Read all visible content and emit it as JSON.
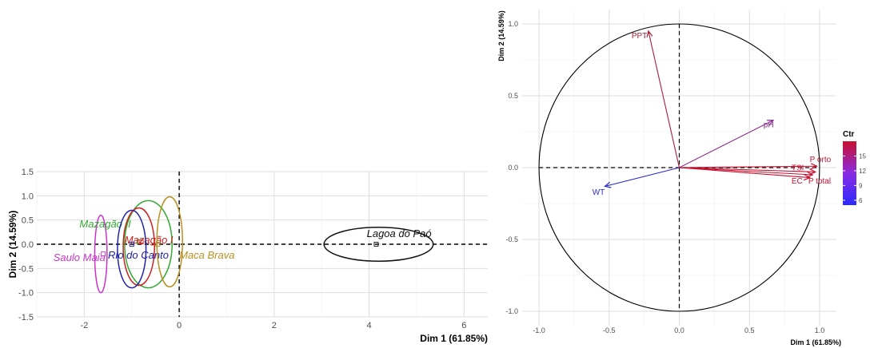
{
  "chart_data": [
    {
      "type": "scatter",
      "title": "",
      "xlabel": "Dim 1 (61.85%)",
      "ylabel": "Dim 2 (14.59%)",
      "xlim": [
        -3.0,
        6.5
      ],
      "ylim": [
        -1.5,
        1.5
      ],
      "x_ticks": [
        -2,
        0,
        2,
        4,
        6
      ],
      "y_ticks": [
        -1.5,
        -1.0,
        -0.5,
        0.0,
        0.5,
        1.0,
        1.5
      ],
      "x_tick_labels": [
        "-2",
        "0",
        "2",
        "4",
        "6"
      ],
      "y_tick_labels": [
        "-1.5",
        "-1.0",
        "-0.5",
        "0.0",
        "0.5",
        "1.0",
        "1.5"
      ],
      "grid": true,
      "reference_lines": {
        "x": 0,
        "y": 0,
        "style": "dashed"
      },
      "groups": [
        {
          "name": "Saulo Maia",
          "color": "#cc33cc",
          "center": [
            -1.6,
            -0.2
          ],
          "ellipse": {
            "cx": -1.65,
            "cy": -0.2,
            "rx": 0.13,
            "ry": 0.8
          },
          "label_at": [
            -2.65,
            -0.35
          ]
        },
        {
          "name": "Mazagão II",
          "color": "#33aa33",
          "center": [
            -0.85,
            0.05
          ],
          "ellipse": {
            "cx": -0.65,
            "cy": 0.0,
            "rx": 0.5,
            "ry": 0.9
          },
          "label_at": [
            -2.1,
            0.35
          ]
        },
        {
          "name": "Mazagão I",
          "color": "#cc2222",
          "center": [
            -0.8,
            0.05
          ],
          "ellipse": {
            "cx": -0.85,
            "cy": -0.05,
            "rx": 0.33,
            "ry": 0.8
          },
          "label_at": [
            -1.15,
            0.02
          ]
        },
        {
          "name": "Rio do Canto",
          "color": "#2222aa",
          "center": [
            -1.0,
            0.0
          ],
          "ellipse": {
            "cx": -1.0,
            "cy": -0.1,
            "rx": 0.3,
            "ry": 0.8
          },
          "label_at": [
            -1.5,
            -0.3
          ]
        },
        {
          "name": "Maca Brava",
          "color": "#b89020",
          "center": [
            -0.45,
            0.0
          ],
          "ellipse": {
            "cx": -0.2,
            "cy": 0.05,
            "rx": 0.27,
            "ry": 0.93
          },
          "label_at": [
            0.0,
            -0.3
          ]
        },
        {
          "name": "Lagoa do Paó",
          "color": "#111111",
          "center": [
            4.15,
            0.0
          ],
          "ellipse": {
            "cx": 4.2,
            "cy": 0.0,
            "rx": 1.15,
            "ry": 0.35
          },
          "label_at": [
            3.95,
            0.15
          ]
        }
      ]
    },
    {
      "type": "vector",
      "title": "",
      "xlabel": "Dim 1 (61.85%)",
      "ylabel": "Dim 2 (14.59%)",
      "xlim": [
        -1.12,
        1.12
      ],
      "ylim": [
        -1.1,
        1.1
      ],
      "x_ticks": [
        -1.0,
        -0.5,
        0.0,
        0.5,
        1.0
      ],
      "y_ticks": [
        -1.0,
        -0.5,
        0.0,
        0.5,
        1.0
      ],
      "x_tick_labels": [
        "-1.0",
        "-0.5",
        "0.0",
        "0.5",
        "1.0"
      ],
      "y_tick_labels": [
        "-1.0",
        "-0.5",
        "0.0",
        "0.5",
        "1.0"
      ],
      "grid": true,
      "unit_circle": true,
      "reference_lines": {
        "x": 0,
        "y": 0,
        "style": "dashed"
      },
      "variables": [
        {
          "name": "PPT",
          "x": -0.22,
          "y": 0.95,
          "color": "#a8203a",
          "label_at": [
            -0.34,
            0.9
          ]
        },
        {
          "name": "pH",
          "x": 0.67,
          "y": 0.33,
          "color": "#8b2f8f",
          "label_at": [
            0.6,
            0.28
          ]
        },
        {
          "name": "P orto",
          "x": 0.98,
          "y": 0.01,
          "color": "#c8102e",
          "label_at": [
            0.93,
            0.04
          ]
        },
        {
          "name": "TSI",
          "x": 0.97,
          "y": -0.03,
          "color": "#c8102e",
          "label_at": [
            0.8,
            -0.02
          ]
        },
        {
          "name": "EC",
          "x": 0.93,
          "y": -0.07,
          "color": "#c8102e",
          "label_at": [
            0.8,
            -0.11
          ]
        },
        {
          "name": "P total",
          "x": 0.95,
          "y": -0.05,
          "color": "#c8102e",
          "label_at": [
            0.92,
            -0.11
          ]
        },
        {
          "name": "WT",
          "x": -0.53,
          "y": -0.13,
          "color": "#2b2bcc",
          "label_at": [
            -0.62,
            -0.19
          ]
        }
      ],
      "colorbar": {
        "title": "Ctr",
        "ticks": [
          15,
          12,
          9,
          6
        ],
        "range": [
          5,
          18
        ],
        "colors": [
          "#2b2bff",
          "#8a2be2",
          "#c8102e"
        ]
      }
    }
  ]
}
